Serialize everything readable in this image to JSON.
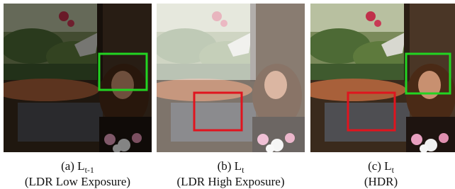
{
  "panels": [
    {
      "label": "(a) L",
      "subscript": "t-1",
      "description": "(LDR Low Exposure)"
    },
    {
      "label": "(b) L",
      "subscript": "t",
      "description": "(LDR High Exposure)"
    },
    {
      "label": "(c) L",
      "subscript": "t",
      "description": "(HDR)"
    }
  ]
}
